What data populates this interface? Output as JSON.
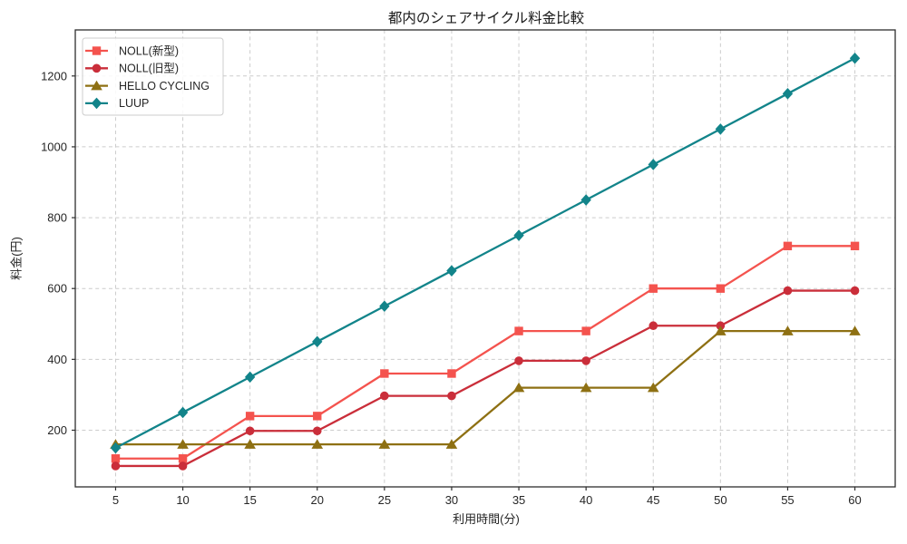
{
  "title": "都内のシェアサイクル料金比較",
  "chart_data": {
    "type": "line",
    "title": "都内のシェアサイクル料金比較",
    "xlabel": "利用時間(分)",
    "ylabel": "料金(円)",
    "x": [
      5,
      10,
      15,
      20,
      25,
      30,
      35,
      40,
      45,
      50,
      55,
      60
    ],
    "series": [
      {
        "id": "noll-new",
        "name": "NOLL(新型)",
        "marker": "square",
        "color": "#f4534e",
        "values": [
          120,
          120,
          240,
          240,
          360,
          360,
          480,
          480,
          600,
          600,
          720,
          720
        ]
      },
      {
        "id": "noll-old",
        "name": "NOLL(旧型)",
        "marker": "circle",
        "color": "#ca2e3a",
        "values": [
          99,
          99,
          198,
          198,
          297,
          297,
          396,
          396,
          495,
          495,
          594,
          594
        ]
      },
      {
        "id": "hello-cycling",
        "name": "HELLO CYCLING",
        "marker": "triangle",
        "color": "#8e7013",
        "values": [
          160,
          160,
          160,
          160,
          160,
          160,
          320,
          320,
          320,
          480,
          480,
          480
        ]
      },
      {
        "id": "luup",
        "name": "LUUP",
        "marker": "diamond",
        "color": "#12848a",
        "values": [
          150,
          250,
          350,
          450,
          550,
          650,
          750,
          850,
          950,
          1050,
          1150,
          1250
        ]
      }
    ],
    "xticks": [
      5,
      10,
      15,
      20,
      25,
      30,
      35,
      40,
      45,
      50,
      55,
      60
    ],
    "yticks": [
      200,
      400,
      600,
      800,
      1000,
      1200
    ],
    "xlim": [
      2.0,
      63.0
    ],
    "ylim": [
      40,
      1330
    ],
    "grid": true,
    "grid_style": "dashed",
    "legend_position": "upper left",
    "colors": {
      "grid": "#cccccc",
      "spine": "#2e2e2e",
      "tick_label": "#262626",
      "legend_border": "#cccccc",
      "legend_bg": "#ffffff"
    }
  }
}
